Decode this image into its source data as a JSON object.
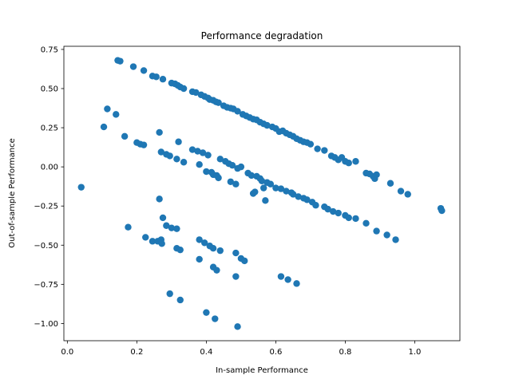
{
  "chart_data": {
    "type": "scatter",
    "title": "Performance degradation",
    "xlabel": "In-sample Performance",
    "ylabel": "Out-of-sample Performance",
    "xlim": [
      -0.01,
      1.13
    ],
    "ylim": [
      -1.11,
      0.77
    ],
    "xticks": [
      0.0,
      0.2,
      0.4,
      0.6,
      0.8,
      1.0
    ],
    "xtick_labels": [
      "0.0",
      "0.2",
      "0.4",
      "0.6",
      "0.8",
      "1.0"
    ],
    "yticks": [
      0.75,
      0.5,
      0.25,
      0.0,
      -0.25,
      -0.5,
      -0.75,
      -1.0
    ],
    "ytick_labels": [
      "0.75",
      "0.50",
      "0.25",
      "0.00",
      "−0.25",
      "−0.50",
      "−0.75",
      "−1.00"
    ],
    "grid": false,
    "legend": "none",
    "marker_color": "#1f77b4",
    "series": [
      {
        "points": [
          [
            0.145,
            0.68
          ],
          [
            0.152,
            0.675
          ],
          [
            0.19,
            0.64
          ],
          [
            0.22,
            0.615
          ],
          [
            0.245,
            0.58
          ],
          [
            0.256,
            0.575
          ],
          [
            0.275,
            0.56
          ],
          [
            0.3,
            0.535
          ],
          [
            0.31,
            0.53
          ],
          [
            0.318,
            0.52
          ],
          [
            0.325,
            0.51
          ],
          [
            0.335,
            0.5
          ],
          [
            0.36,
            0.48
          ],
          [
            0.37,
            0.475
          ],
          [
            0.385,
            0.46
          ],
          [
            0.395,
            0.45
          ],
          [
            0.405,
            0.44
          ],
          [
            0.41,
            0.43
          ],
          [
            0.42,
            0.425
          ],
          [
            0.428,
            0.415
          ],
          [
            0.435,
            0.41
          ],
          [
            0.45,
            0.39
          ],
          [
            0.46,
            0.38
          ],
          [
            0.47,
            0.375
          ],
          [
            0.478,
            0.37
          ],
          [
            0.49,
            0.355
          ],
          [
            0.505,
            0.335
          ],
          [
            0.515,
            0.325
          ],
          [
            0.525,
            0.315
          ],
          [
            0.535,
            0.305
          ],
          [
            0.545,
            0.3
          ],
          [
            0.555,
            0.285
          ],
          [
            0.565,
            0.275
          ],
          [
            0.575,
            0.265
          ],
          [
            0.59,
            0.255
          ],
          [
            0.6,
            0.245
          ],
          [
            0.61,
            0.225
          ],
          [
            0.62,
            0.23
          ],
          [
            0.63,
            0.215
          ],
          [
            0.64,
            0.205
          ],
          [
            0.65,
            0.195
          ],
          [
            0.66,
            0.18
          ],
          [
            0.67,
            0.17
          ],
          [
            0.68,
            0.16
          ],
          [
            0.69,
            0.155
          ],
          [
            0.7,
            0.145
          ],
          [
            0.72,
            0.115
          ],
          [
            0.74,
            0.105
          ],
          [
            0.76,
            0.07
          ],
          [
            0.77,
            0.06
          ],
          [
            0.78,
            0.045
          ],
          [
            0.79,
            0.06
          ],
          [
            0.8,
            0.035
          ],
          [
            0.81,
            0.025
          ],
          [
            0.83,
            0.035
          ],
          [
            0.86,
            -0.04
          ],
          [
            0.87,
            -0.045
          ],
          [
            0.88,
            -0.06
          ],
          [
            0.885,
            -0.075
          ],
          [
            0.89,
            -0.05
          ],
          [
            0.93,
            -0.105
          ],
          [
            0.96,
            -0.155
          ],
          [
            0.98,
            -0.175
          ],
          [
            1.075,
            -0.265
          ],
          [
            1.078,
            -0.28
          ]
        ]
      },
      {
        "points": [
          [
            0.105,
            0.255
          ],
          [
            0.115,
            0.37
          ],
          [
            0.14,
            0.335
          ],
          [
            0.165,
            0.195
          ],
          [
            0.2,
            0.155
          ],
          [
            0.21,
            0.145
          ],
          [
            0.22,
            0.14
          ],
          [
            0.265,
            0.22
          ],
          [
            0.27,
            0.095
          ],
          [
            0.285,
            0.08
          ],
          [
            0.295,
            0.07
          ],
          [
            0.315,
            0.05
          ],
          [
            0.32,
            0.16
          ],
          [
            0.335,
            0.03
          ],
          [
            0.36,
            0.11
          ],
          [
            0.375,
            0.1
          ],
          [
            0.38,
            0.015
          ],
          [
            0.39,
            0.09
          ],
          [
            0.405,
            0.075
          ],
          [
            0.4,
            -0.03
          ],
          [
            0.415,
            -0.035
          ],
          [
            0.42,
            -0.05
          ],
          [
            0.43,
            -0.055
          ],
          [
            0.435,
            -0.07
          ],
          [
            0.44,
            0.05
          ],
          [
            0.455,
            0.035
          ],
          [
            0.465,
            0.02
          ],
          [
            0.475,
            0.01
          ],
          [
            0.47,
            -0.095
          ],
          [
            0.485,
            -0.11
          ],
          [
            0.49,
            -0.01
          ],
          [
            0.5,
            0.0
          ],
          [
            0.52,
            -0.04
          ],
          [
            0.53,
            -0.055
          ],
          [
            0.535,
            -0.17
          ],
          [
            0.54,
            -0.16
          ],
          [
            0.545,
            -0.06
          ],
          [
            0.555,
            -0.075
          ],
          [
            0.56,
            -0.09
          ],
          [
            0.57,
            -0.215
          ],
          [
            0.575,
            -0.1
          ],
          [
            0.585,
            -0.11
          ],
          [
            0.6,
            -0.135
          ],
          [
            0.615,
            -0.14
          ],
          [
            0.63,
            -0.155
          ],
          [
            0.645,
            -0.165
          ],
          [
            0.65,
            -0.175
          ],
          [
            0.665,
            -0.19
          ],
          [
            0.68,
            -0.2
          ],
          [
            0.69,
            -0.21
          ],
          [
            0.705,
            -0.225
          ],
          [
            0.715,
            -0.245
          ],
          [
            0.74,
            -0.255
          ],
          [
            0.75,
            -0.27
          ],
          [
            0.765,
            -0.285
          ],
          [
            0.78,
            -0.295
          ],
          [
            0.8,
            -0.31
          ],
          [
            0.81,
            -0.325
          ],
          [
            0.83,
            -0.33
          ],
          [
            0.86,
            -0.36
          ],
          [
            0.89,
            -0.41
          ],
          [
            0.92,
            -0.435
          ],
          [
            0.945,
            -0.465
          ],
          [
            0.565,
            -0.135
          ],
          [
            0.265,
            -0.205
          ]
        ]
      },
      {
        "points": [
          [
            0.04,
            -0.13
          ],
          [
            0.175,
            -0.385
          ],
          [
            0.225,
            -0.45
          ],
          [
            0.245,
            -0.475
          ],
          [
            0.26,
            -0.475
          ],
          [
            0.27,
            -0.465
          ],
          [
            0.272,
            -0.49
          ],
          [
            0.275,
            -0.325
          ],
          [
            0.285,
            -0.375
          ],
          [
            0.3,
            -0.39
          ],
          [
            0.315,
            -0.395
          ],
          [
            0.315,
            -0.52
          ],
          [
            0.325,
            -0.53
          ],
          [
            0.38,
            -0.465
          ],
          [
            0.395,
            -0.485
          ],
          [
            0.38,
            -0.59
          ],
          [
            0.41,
            -0.505
          ],
          [
            0.42,
            -0.52
          ],
          [
            0.42,
            -0.64
          ],
          [
            0.43,
            -0.66
          ],
          [
            0.44,
            -0.535
          ],
          [
            0.485,
            -0.55
          ],
          [
            0.5,
            -0.585
          ],
          [
            0.51,
            -0.6
          ],
          [
            0.485,
            -0.7
          ],
          [
            0.615,
            -0.7
          ],
          [
            0.635,
            -0.72
          ],
          [
            0.66,
            -0.745
          ],
          [
            0.295,
            -0.81
          ],
          [
            0.325,
            -0.85
          ],
          [
            0.4,
            -0.93
          ],
          [
            0.425,
            -0.97
          ],
          [
            0.49,
            -1.02
          ]
        ]
      }
    ]
  }
}
